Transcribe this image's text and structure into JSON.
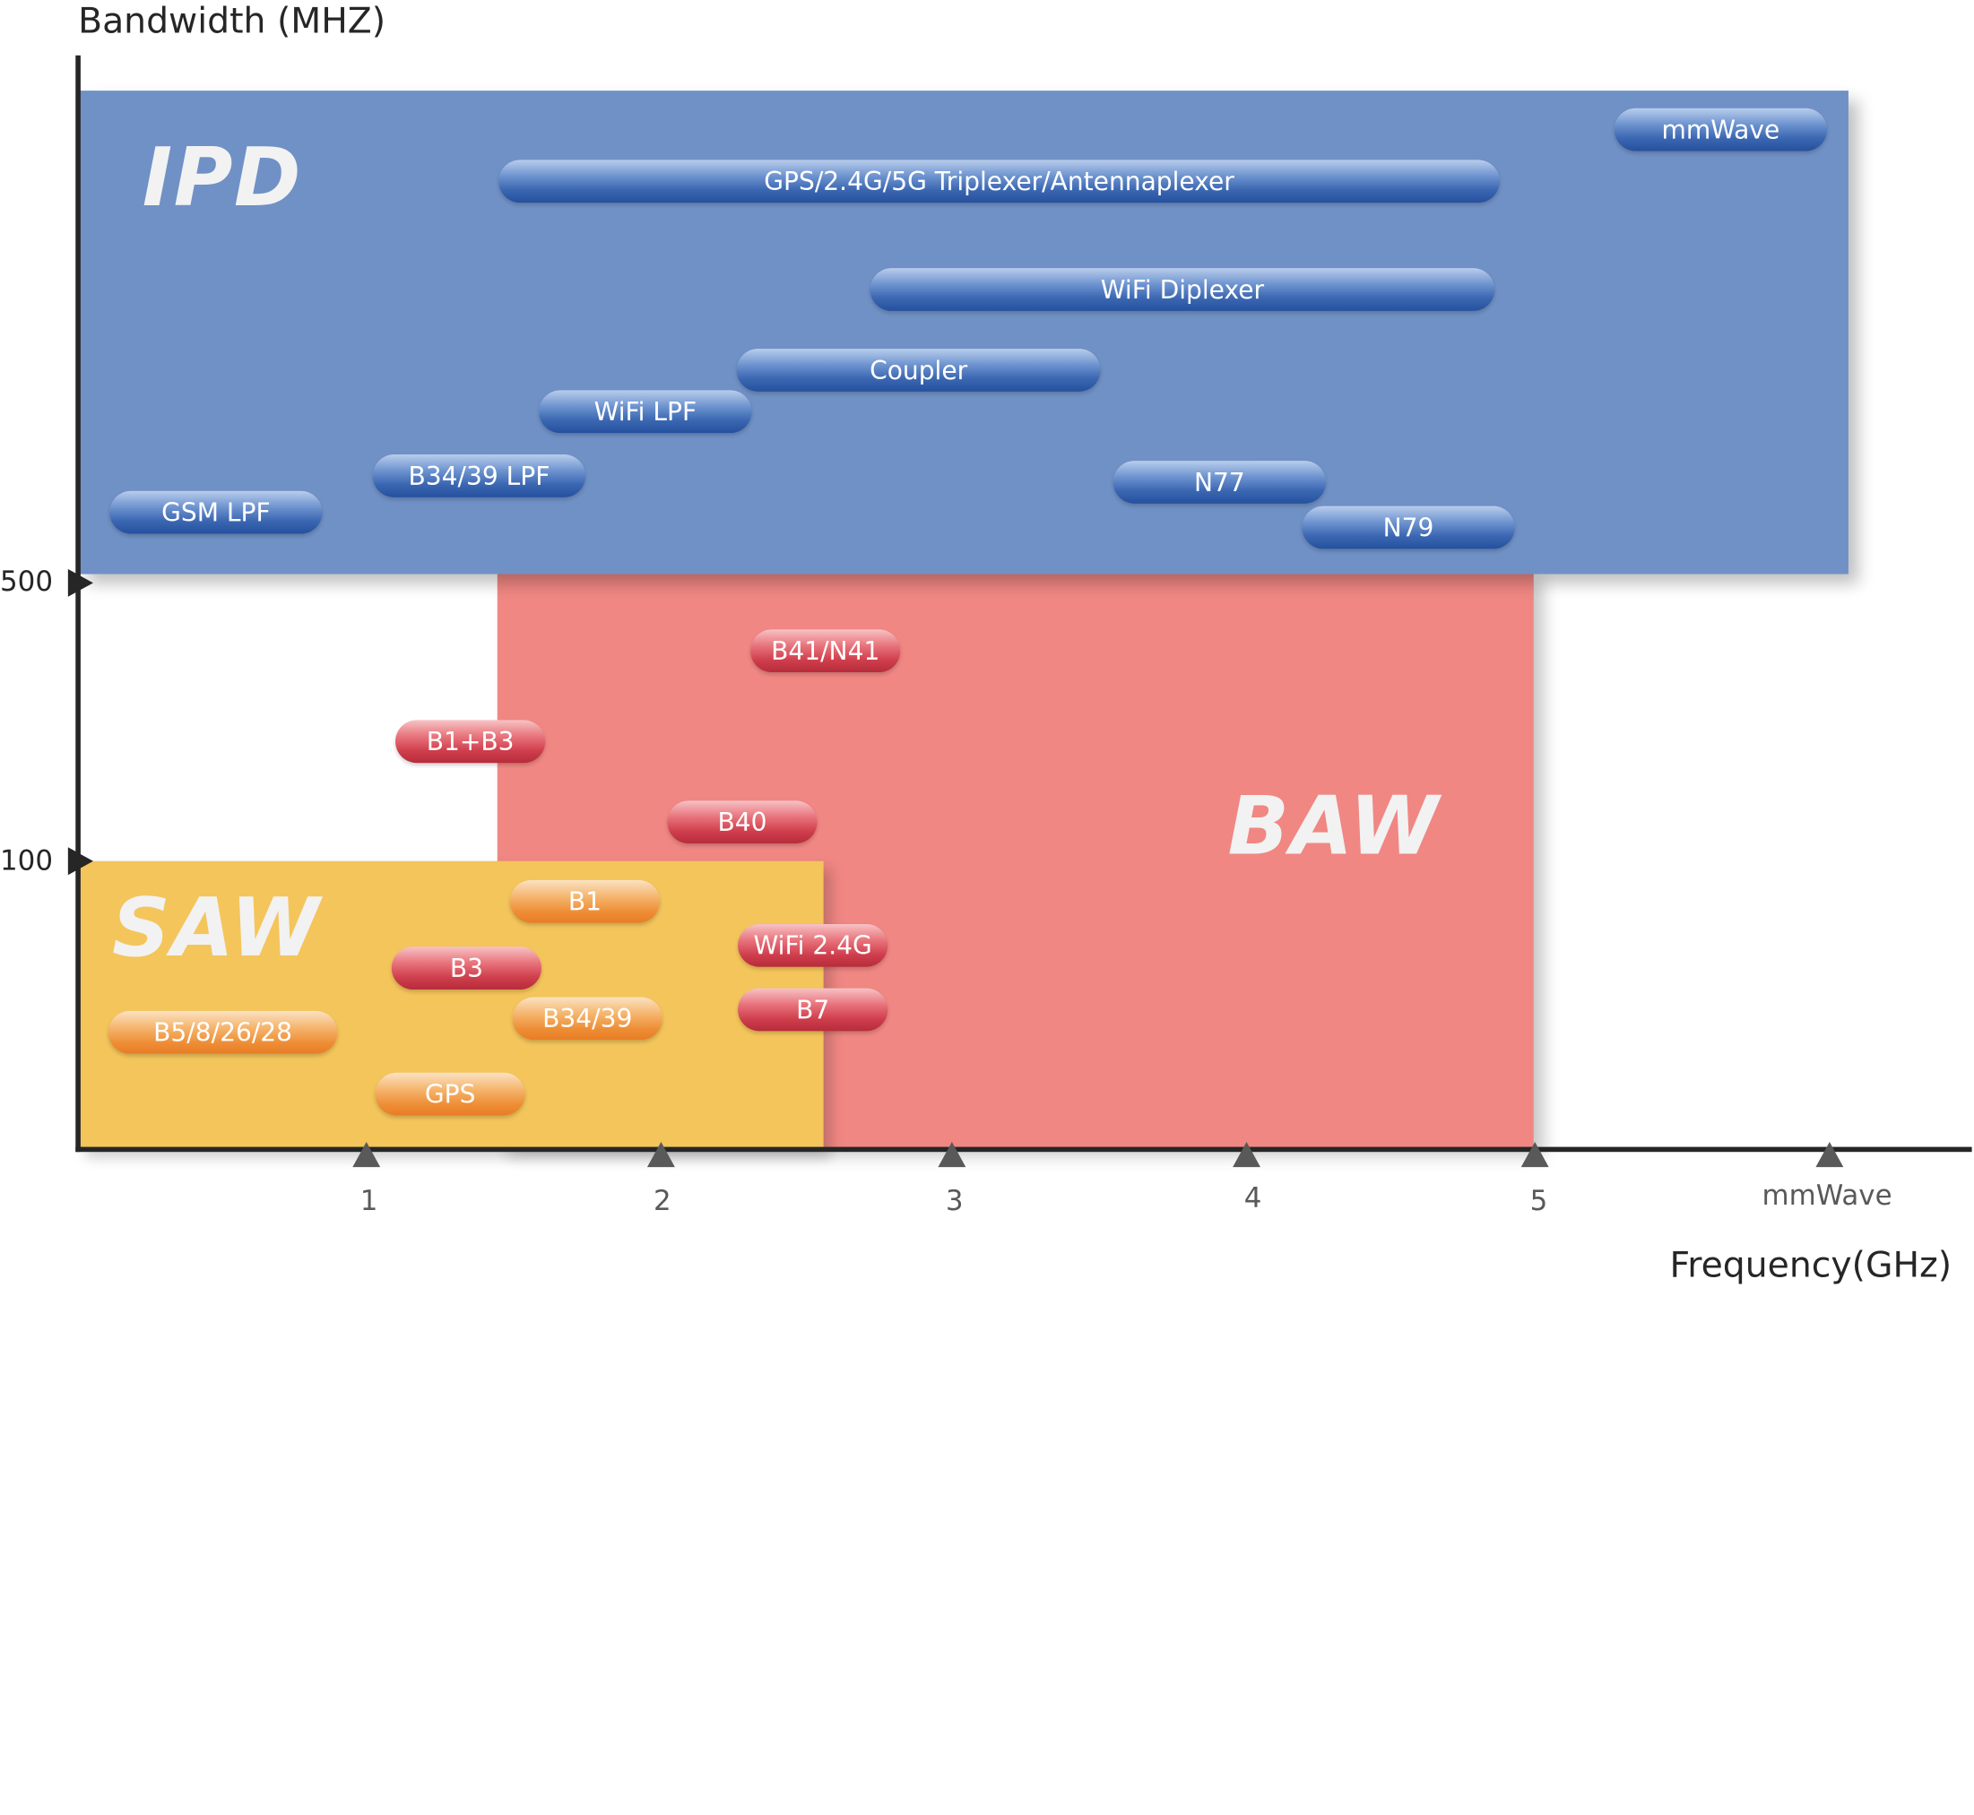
{
  "axes": {
    "y_title": "Bandwidth (MHZ)",
    "x_title": "Frequency(GHz)",
    "y_ticks": [
      "500",
      "100"
    ],
    "x_ticks": [
      "1",
      "2",
      "3",
      "4",
      "5",
      "mmWave"
    ]
  },
  "regions": {
    "ipd": "IPD",
    "baw": "BAW",
    "saw": "SAW"
  },
  "ipd_filters": [
    "mmWave",
    "GPS/2.4G/5G Triplexer/Antennaplexer",
    "WiFi Diplexer",
    "Coupler",
    "WiFi LPF",
    "B34/39 LPF",
    "GSM LPF",
    "N77",
    "N79"
  ],
  "baw_filters": [
    "B41/N41",
    "B1+B3",
    "B40",
    "WiFi 2.4G",
    "B7",
    "B3"
  ],
  "saw_filters": [
    "B1",
    "B34/39",
    "B5/8/26/28",
    "GPS"
  ],
  "colors": {
    "ipd_region": "#7091c6",
    "baw_region": "#f08783",
    "saw_region": "#f4c55b",
    "ipd_pill": "#2f5ea8",
    "baw_pill": "#cf3e4c",
    "saw_pill": "#ee8d35",
    "axis": "#262626"
  }
}
